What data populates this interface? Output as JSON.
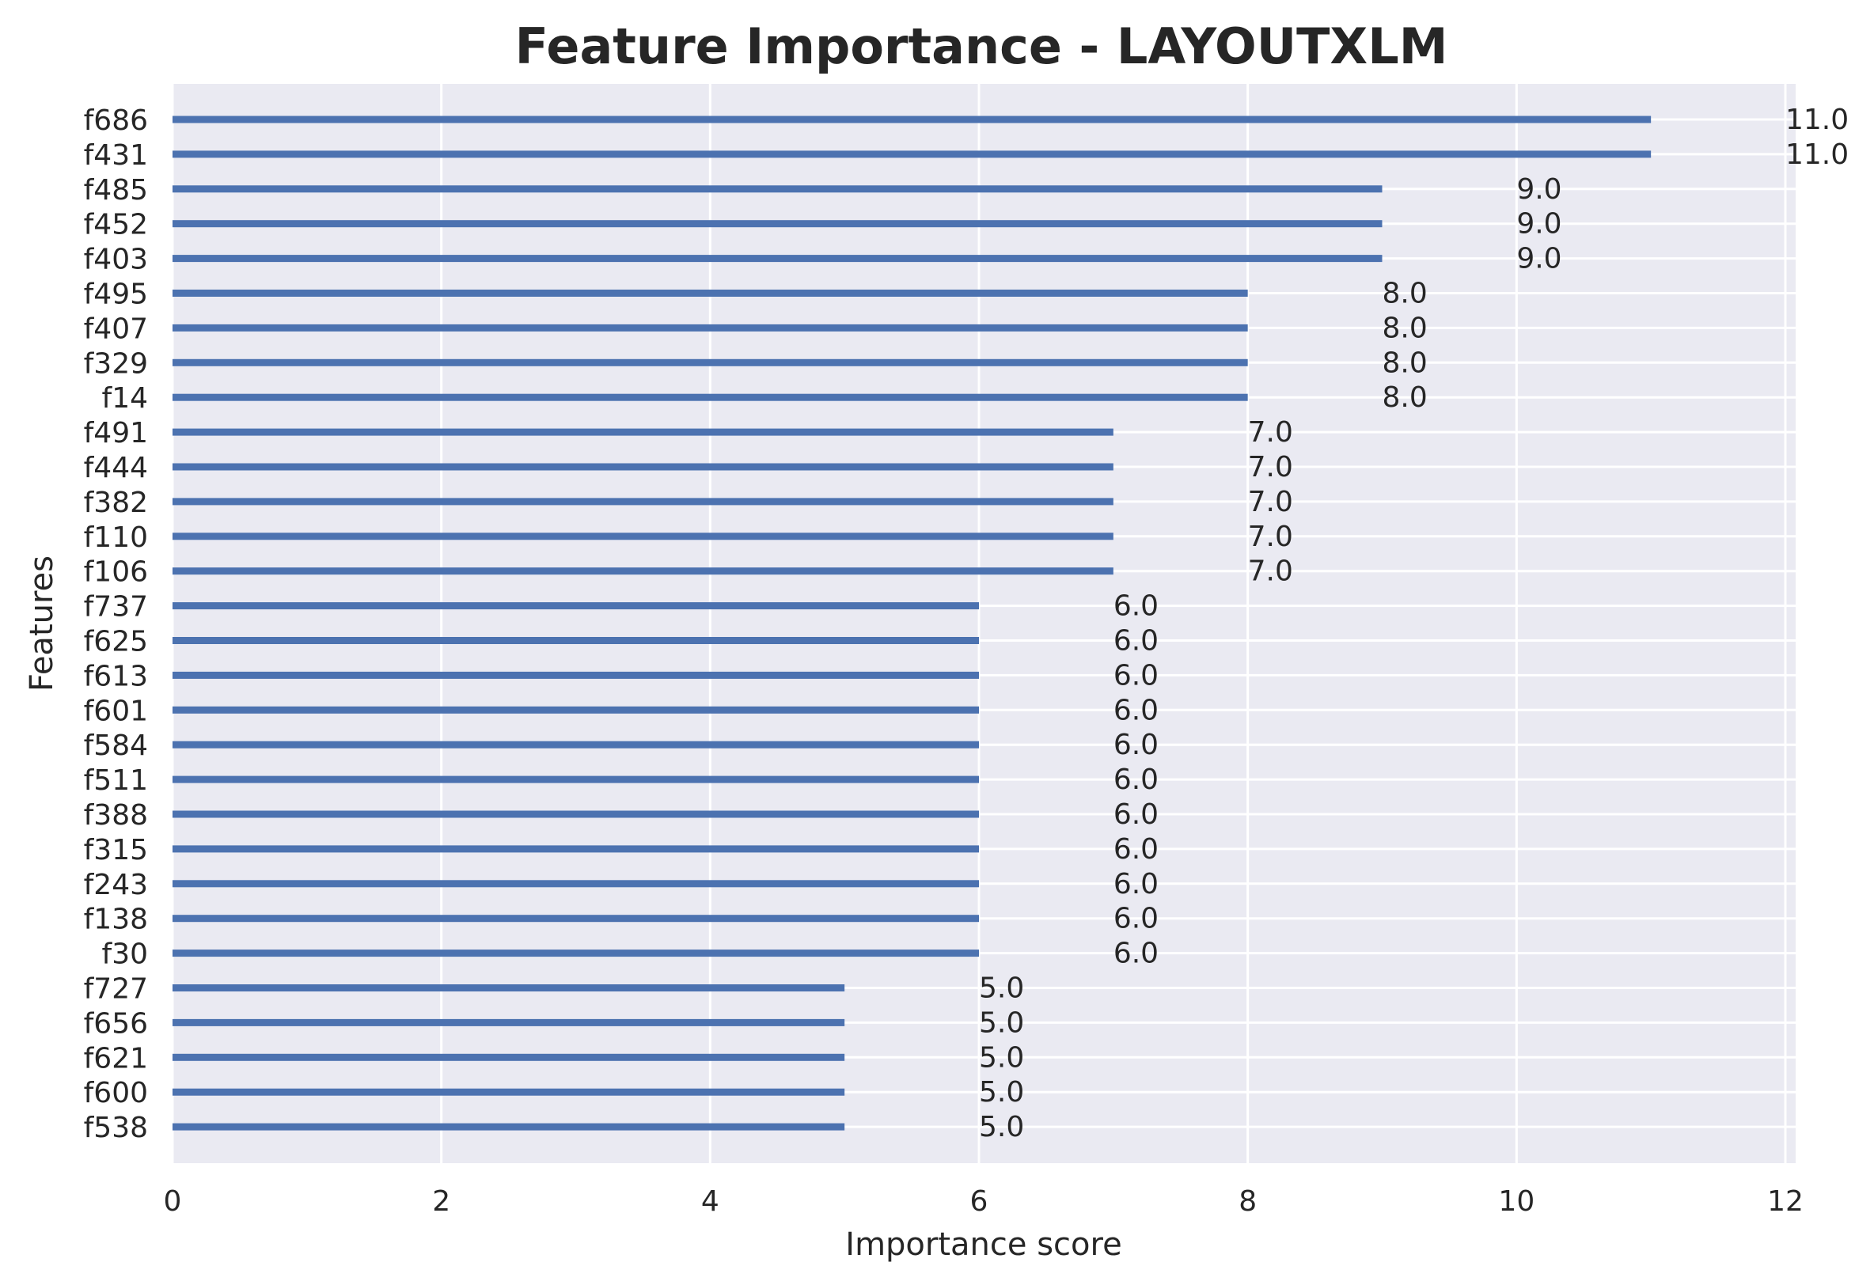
{
  "chart_data": {
    "type": "bar",
    "orientation": "horizontal",
    "title": "Feature Importance - LAYOUTXLM",
    "xlabel": "Importance score",
    "ylabel": "Features",
    "xlim": [
      0,
      12.1
    ],
    "xticks": [
      0,
      2,
      4,
      6,
      8,
      10,
      12
    ],
    "grid": true,
    "categories": [
      "f686",
      "f431",
      "f485",
      "f452",
      "f403",
      "f495",
      "f407",
      "f329",
      "f14",
      "f491",
      "f444",
      "f382",
      "f110",
      "f106",
      "f737",
      "f625",
      "f613",
      "f601",
      "f584",
      "f511",
      "f388",
      "f315",
      "f243",
      "f138",
      "f30",
      "f727",
      "f656",
      "f621",
      "f600",
      "f538"
    ],
    "values": [
      11,
      11,
      9,
      9,
      9,
      8,
      8,
      8,
      8,
      7,
      7,
      7,
      7,
      7,
      6,
      6,
      6,
      6,
      6,
      6,
      6,
      6,
      6,
      6,
      6,
      5,
      5,
      5,
      5,
      5
    ],
    "value_labels": [
      "11.0",
      "11.0",
      "9.0",
      "9.0",
      "9.0",
      "8.0",
      "8.0",
      "8.0",
      "8.0",
      "7.0",
      "7.0",
      "7.0",
      "7.0",
      "7.0",
      "6.0",
      "6.0",
      "6.0",
      "6.0",
      "6.0",
      "6.0",
      "6.0",
      "6.0",
      "6.0",
      "6.0",
      "6.0",
      "5.0",
      "5.0",
      "5.0",
      "5.0",
      "5.0"
    ],
    "colors": {
      "bar": "#4c72b0",
      "background": "#eaeaf2",
      "grid": "#ffffff",
      "text": "#262626"
    }
  }
}
